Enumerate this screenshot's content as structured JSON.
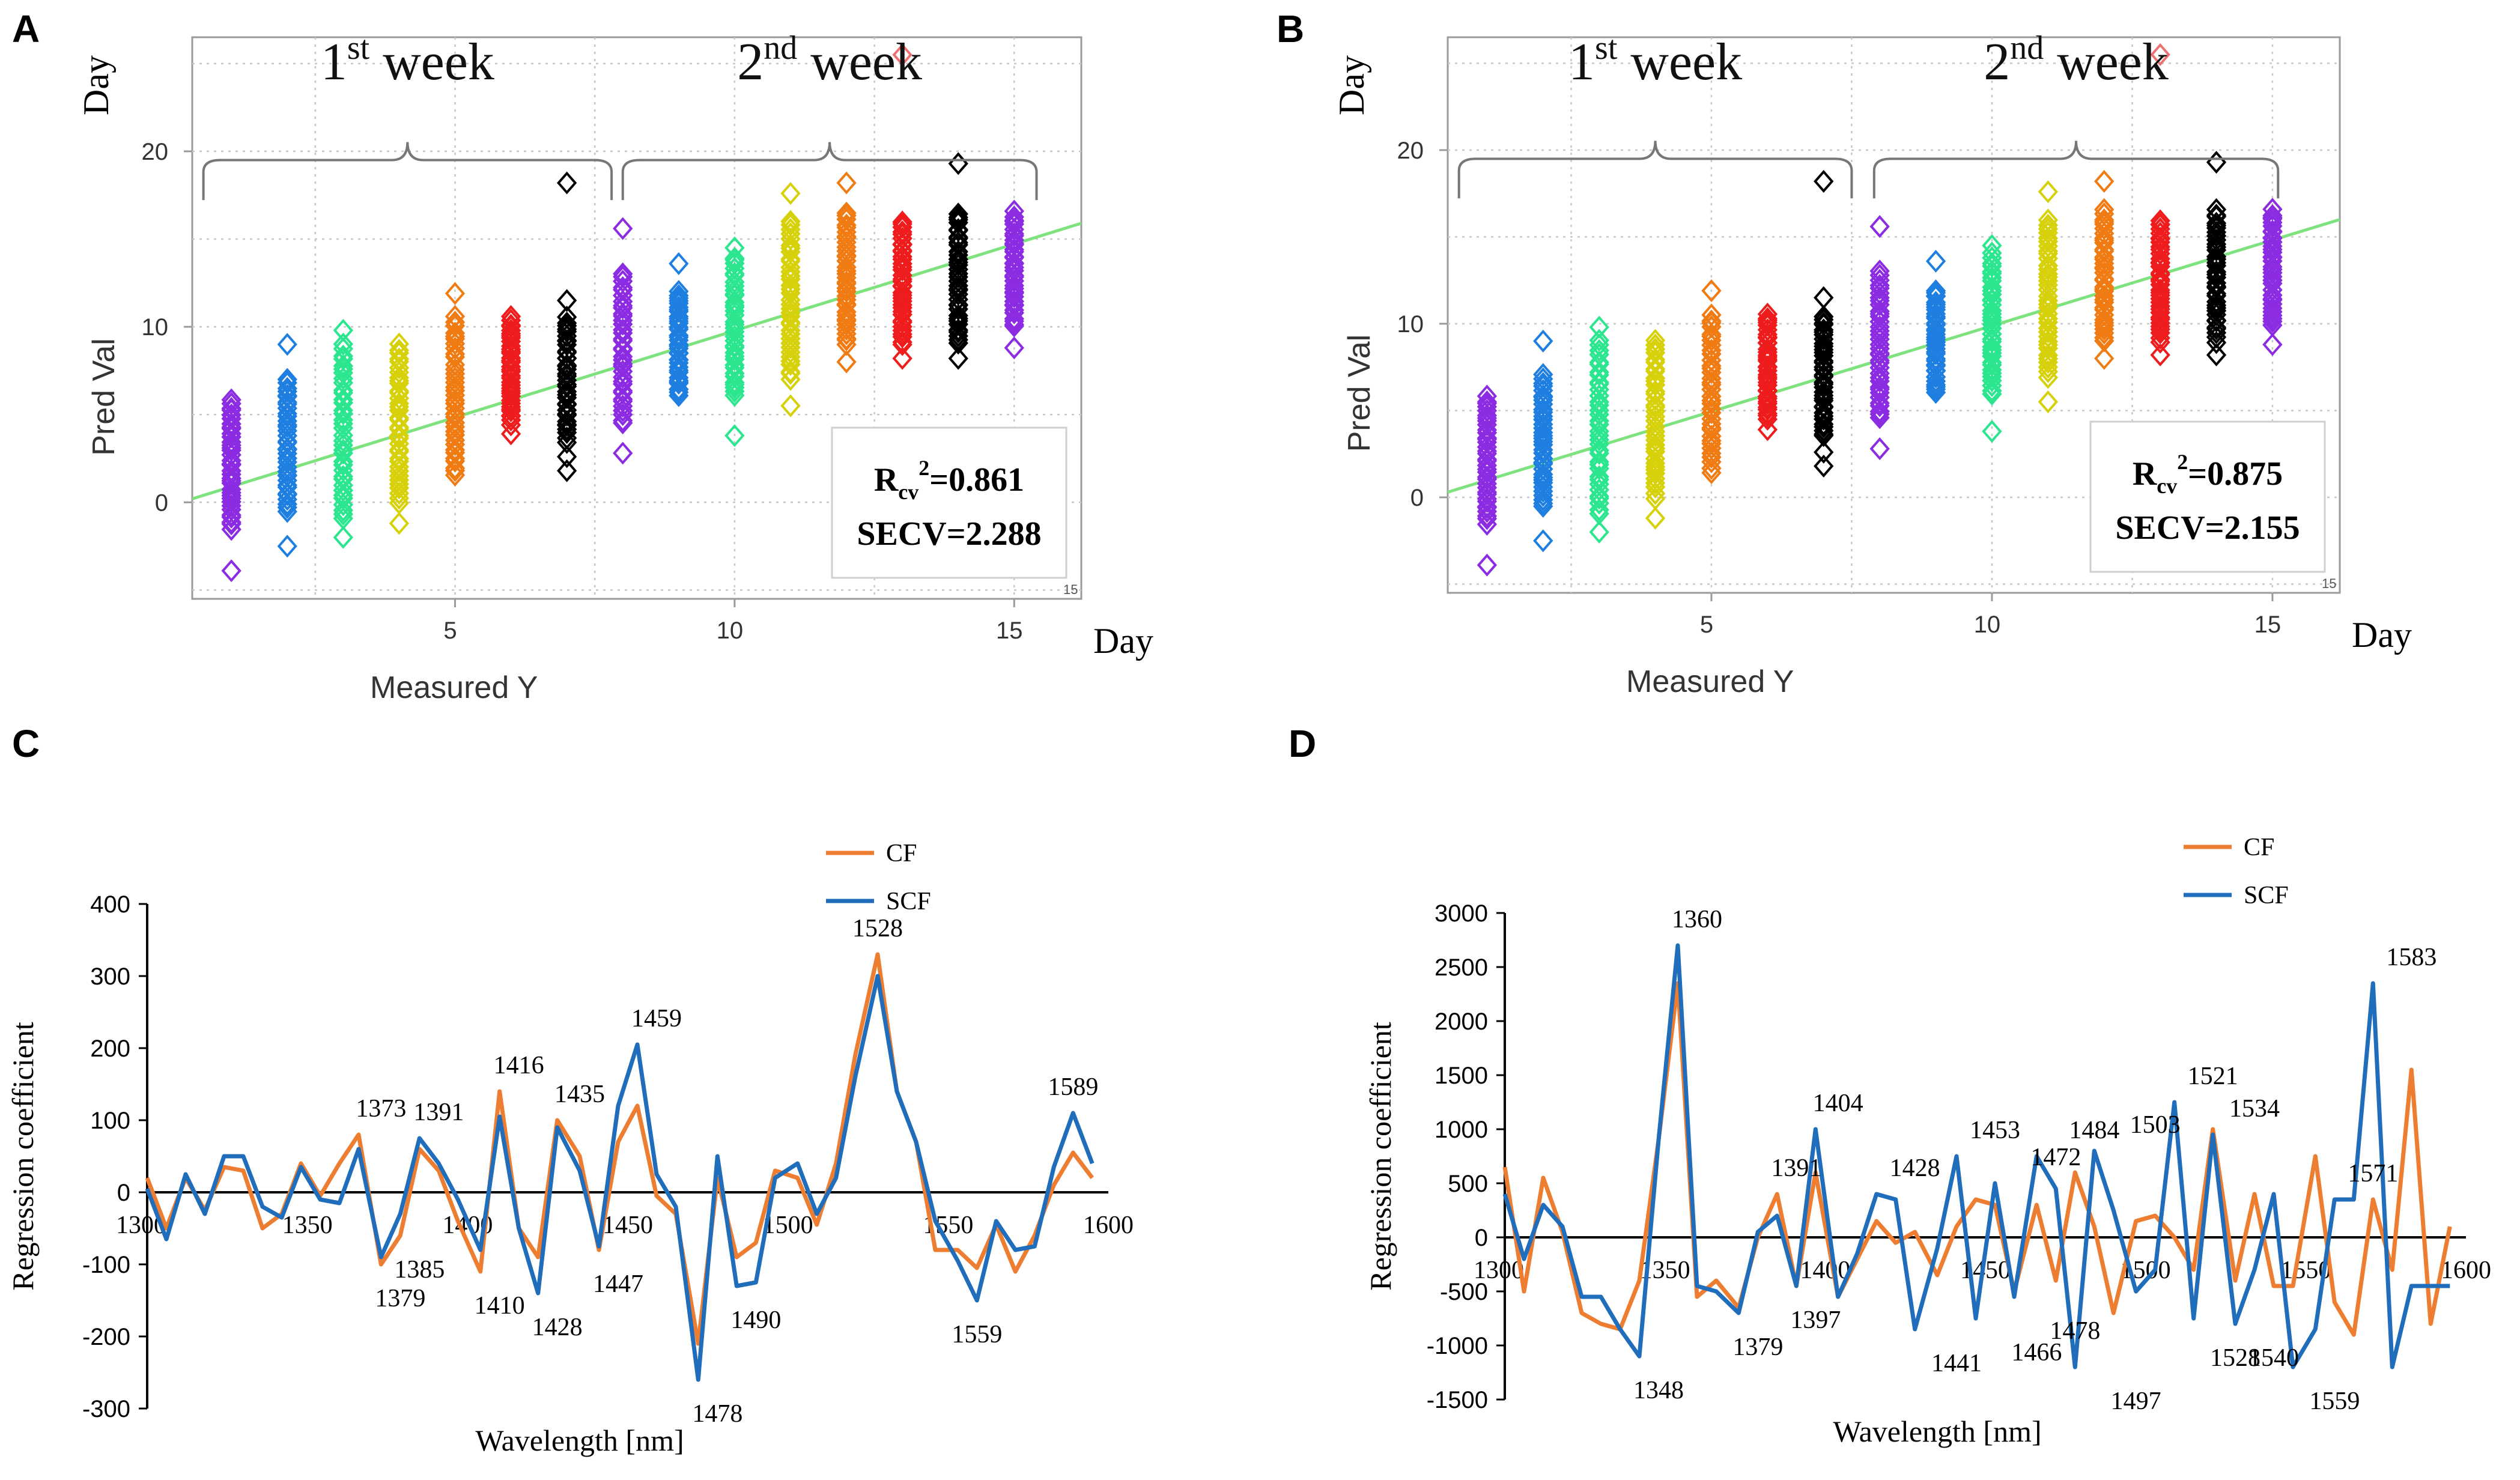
{
  "panels": [
    "A",
    "B",
    "C",
    "D"
  ],
  "chart_data": [
    {
      "panel": "A",
      "type": "scatter",
      "xlabel": "Measured Y",
      "ylabel": "Pred Val",
      "x_unit": "Day",
      "y_unit": "Day",
      "xlim": [
        0.3,
        16.2
      ],
      "ylim": [
        -5.5,
        26.5
      ],
      "x_ticks": [
        5,
        10,
        15
      ],
      "y_ticks": [
        0,
        10,
        20
      ],
      "grid": true,
      "groups": [
        {
          "label": "1st week",
          "sup": "st",
          "base": "1",
          "word": "week",
          "x_start": 0.5,
          "x_end": 7.8
        },
        {
          "label": "2nd week",
          "sup": "nd",
          "base": "2",
          "word": "week",
          "x_start": 8.0,
          "x_end": 15.4
        }
      ],
      "fit_line": {
        "x": [
          0.3,
          16.2
        ],
        "y": [
          0.2,
          15.9
        ],
        "color": "#7ee27e"
      },
      "stats": {
        "r_label_base": "R",
        "r_label_sub": "cv",
        "r_label_sup": "2",
        "r_value": "=0.861",
        "secv": "SECV=2.288"
      },
      "corner_mark": "15",
      "series": [
        {
          "day": 1,
          "color": "#8b2be2",
          "min": -1.5,
          "max": 5.8,
          "outliers": [
            -3.9
          ]
        },
        {
          "day": 2,
          "color": "#1e7fe0",
          "min": -0.5,
          "max": 7.0,
          "outliers": [
            -2.5,
            9.0
          ]
        },
        {
          "day": 3,
          "color": "#2be68f",
          "min": -1.0,
          "max": 9.0,
          "outliers": [
            -2.0,
            9.8
          ]
        },
        {
          "day": 4,
          "color": "#d6d10a",
          "min": 0.0,
          "max": 9.0,
          "outliers": [
            -1.2
          ]
        },
        {
          "day": 5,
          "color": "#f07b12",
          "min": 1.5,
          "max": 10.5,
          "outliers": [
            11.9
          ]
        },
        {
          "day": 6,
          "color": "#ee1c1c",
          "min": 4.5,
          "max": 10.5,
          "outliers": [
            3.9
          ]
        },
        {
          "day": 7,
          "color": "#000000",
          "min": 3.5,
          "max": 10.5,
          "outliers": [
            1.8,
            2.6,
            11.5,
            18.2
          ]
        },
        {
          "day": 8,
          "color": "#8b2be2",
          "min": 4.5,
          "max": 13.0,
          "outliers": [
            2.8,
            15.6
          ]
        },
        {
          "day": 9,
          "color": "#1e7fe0",
          "min": 6.0,
          "max": 12.0,
          "outliers": [
            13.6
          ]
        },
        {
          "day": 10,
          "color": "#2be68f",
          "min": 6.0,
          "max": 14.0,
          "outliers": [
            3.8,
            14.5
          ]
        },
        {
          "day": 11,
          "color": "#d6d10a",
          "min": 7.0,
          "max": 16.0,
          "outliers": [
            5.5,
            17.6
          ]
        },
        {
          "day": 12,
          "color": "#f07b12",
          "min": 9.0,
          "max": 16.5,
          "outliers": [
            8.0,
            18.2
          ]
        },
        {
          "day": 13,
          "color": "#ee1c1c",
          "min": 9.0,
          "max": 16.0,
          "outliers": [
            8.2,
            25.5
          ]
        },
        {
          "day": 14,
          "color": "#000000",
          "min": 9.0,
          "max": 16.5,
          "outliers": [
            8.2,
            19.3
          ]
        },
        {
          "day": 15,
          "color": "#8b2be2",
          "min": 10.0,
          "max": 16.5,
          "outliers": [
            8.8
          ]
        }
      ]
    },
    {
      "panel": "B",
      "type": "scatter",
      "xlabel": "Measured Y",
      "ylabel": "Pred Val",
      "x_unit": "Day",
      "y_unit": "Day",
      "xlim": [
        0.3,
        16.2
      ],
      "ylim": [
        -5.5,
        26.5
      ],
      "x_ticks": [
        5,
        10,
        15
      ],
      "y_ticks": [
        0,
        10,
        20
      ],
      "grid": true,
      "groups": [
        {
          "label": "1st week",
          "sup": "st",
          "base": "1",
          "word": "week",
          "x_start": 0.5,
          "x_end": 7.5
        },
        {
          "label": "2nd week",
          "sup": "nd",
          "base": "2",
          "word": "week",
          "x_start": 7.9,
          "x_end": 15.1
        }
      ],
      "fit_line": {
        "x": [
          0.3,
          16.2
        ],
        "y": [
          0.3,
          16.0
        ],
        "color": "#7ee27e"
      },
      "stats": {
        "r_label_base": "R",
        "r_label_sub": "cv",
        "r_label_sup": "2",
        "r_value": "=0.875",
        "secv": "SECV=2.155"
      },
      "corner_mark": "15",
      "series": [
        {
          "day": 1,
          "color": "#8b2be2",
          "min": -1.5,
          "max": 5.8,
          "outliers": [
            -3.9
          ]
        },
        {
          "day": 2,
          "color": "#1e7fe0",
          "min": -0.5,
          "max": 7.0,
          "outliers": [
            -2.5,
            9.0
          ]
        },
        {
          "day": 3,
          "color": "#2be68f",
          "min": -1.0,
          "max": 9.0,
          "outliers": [
            -2.0,
            9.8
          ]
        },
        {
          "day": 4,
          "color": "#d6d10a",
          "min": 0.0,
          "max": 9.0,
          "outliers": [
            -1.2
          ]
        },
        {
          "day": 5,
          "color": "#f07b12",
          "min": 1.5,
          "max": 10.5,
          "outliers": [
            11.9
          ]
        },
        {
          "day": 6,
          "color": "#ee1c1c",
          "min": 4.5,
          "max": 10.5,
          "outliers": [
            3.9
          ]
        },
        {
          "day": 7,
          "color": "#000000",
          "min": 3.5,
          "max": 10.5,
          "outliers": [
            1.8,
            2.6,
            11.5,
            18.2
          ]
        },
        {
          "day": 8,
          "color": "#8b2be2",
          "min": 4.5,
          "max": 13.0,
          "outliers": [
            2.8,
            15.6
          ]
        },
        {
          "day": 9,
          "color": "#1e7fe0",
          "min": 6.0,
          "max": 12.0,
          "outliers": [
            13.6
          ]
        },
        {
          "day": 10,
          "color": "#2be68f",
          "min": 6.0,
          "max": 14.0,
          "outliers": [
            3.8,
            14.5
          ]
        },
        {
          "day": 11,
          "color": "#d6d10a",
          "min": 7.0,
          "max": 16.0,
          "outliers": [
            5.5,
            17.6
          ]
        },
        {
          "day": 12,
          "color": "#f07b12",
          "min": 9.0,
          "max": 16.5,
          "outliers": [
            8.0,
            18.2
          ]
        },
        {
          "day": 13,
          "color": "#ee1c1c",
          "min": 9.0,
          "max": 16.0,
          "outliers": [
            8.2,
            25.5
          ]
        },
        {
          "day": 14,
          "color": "#000000",
          "min": 9.0,
          "max": 16.5,
          "outliers": [
            8.2,
            19.3
          ]
        },
        {
          "day": 15,
          "color": "#8b2be2",
          "min": 10.0,
          "max": 16.5,
          "outliers": [
            8.8
          ]
        }
      ]
    },
    {
      "panel": "C",
      "type": "line",
      "xlabel": "Wavelength [nm]",
      "ylabel": "Regression coefficient",
      "xlim": [
        1300,
        1600
      ],
      "ylim": [
        -300,
        400
      ],
      "x_ticks": [
        1300,
        1350,
        1400,
        1450,
        1500,
        1550,
        1600
      ],
      "y_ticks": [
        -300,
        -200,
        -100,
        0,
        100,
        200,
        300,
        400
      ],
      "x": [
        1300,
        1306,
        1312,
        1318,
        1324,
        1330,
        1336,
        1342,
        1348,
        1354,
        1360,
        1366,
        1373,
        1379,
        1385,
        1391,
        1397,
        1404,
        1410,
        1416,
        1422,
        1428,
        1435,
        1441,
        1447,
        1453,
        1459,
        1465,
        1472,
        1478,
        1484,
        1490,
        1496,
        1503,
        1509,
        1515,
        1521,
        1528,
        1534,
        1540,
        1546,
        1553,
        1559,
        1565,
        1571,
        1577,
        1583,
        1589,
        1595
      ],
      "series": [
        {
          "name": "CF",
          "color": "#ed7d31",
          "values": [
            20,
            -50,
            20,
            -25,
            35,
            30,
            -50,
            -30,
            40,
            -5,
            40,
            80,
            -100,
            -60,
            60,
            30,
            -40,
            -110,
            140,
            -50,
            -90,
            100,
            50,
            -80,
            70,
            120,
            -5,
            -30,
            -210,
            20,
            -90,
            -70,
            30,
            20,
            -45,
            40,
            190,
            330,
            140,
            70,
            -80,
            -80,
            -105,
            -45,
            -110,
            -60,
            10,
            55,
            20
          ]
        },
        {
          "name": "SCF",
          "color": "#1f6dbb",
          "values": [
            5,
            -65,
            25,
            -30,
            50,
            50,
            -20,
            -35,
            35,
            -10,
            -15,
            60,
            -90,
            -30,
            75,
            40,
            -10,
            -80,
            105,
            -50,
            -140,
            90,
            30,
            -75,
            120,
            205,
            25,
            -20,
            -260,
            50,
            -130,
            -125,
            20,
            40,
            -30,
            20,
            160,
            300,
            140,
            70,
            -40,
            -95,
            -150,
            -40,
            -80,
            -75,
            35,
            110,
            40
          ]
        }
      ],
      "annotations": [
        {
          "label": "1373",
          "x": 1373,
          "y": 80,
          "pos": "above"
        },
        {
          "label": "1391",
          "x": 1391,
          "y": 75,
          "pos": "above"
        },
        {
          "label": "1416",
          "x": 1416,
          "y": 140,
          "pos": "above"
        },
        {
          "label": "1435",
          "x": 1435,
          "y": 100,
          "pos": "above"
        },
        {
          "label": "1459",
          "x": 1459,
          "y": 205,
          "pos": "above"
        },
        {
          "label": "1528",
          "x": 1528,
          "y": 330,
          "pos": "above"
        },
        {
          "label": "1589",
          "x": 1589,
          "y": 110,
          "pos": "above"
        },
        {
          "label": "1379",
          "x": 1379,
          "y": -100,
          "pos": "below"
        },
        {
          "label": "1385",
          "x": 1385,
          "y": -60,
          "pos": "below"
        },
        {
          "label": "1410",
          "x": 1410,
          "y": -110,
          "pos": "below"
        },
        {
          "label": "1428",
          "x": 1428,
          "y": -140,
          "pos": "below"
        },
        {
          "label": "1447",
          "x": 1447,
          "y": -80,
          "pos": "below"
        },
        {
          "label": "1478",
          "x": 1478,
          "y": -260,
          "pos": "below"
        },
        {
          "label": "1490",
          "x": 1490,
          "y": -130,
          "pos": "below"
        },
        {
          "label": "1559",
          "x": 1559,
          "y": -150,
          "pos": "below"
        }
      ]
    },
    {
      "panel": "D",
      "type": "line",
      "xlabel": "Wavelength [nm]",
      "ylabel": "Regression coefficient",
      "xlim": [
        1300,
        1600
      ],
      "ylim": [
        -1500,
        3000
      ],
      "x_ticks": [
        1300,
        1350,
        1400,
        1450,
        1500,
        1550,
        1600
      ],
      "y_ticks": [
        -1500,
        -1000,
        -500,
        0,
        500,
        1000,
        1500,
        2000,
        2500,
        3000
      ],
      "x": [
        1300,
        1306,
        1312,
        1318,
        1324,
        1330,
        1336,
        1342,
        1348,
        1354,
        1360,
        1366,
        1373,
        1379,
        1385,
        1391,
        1397,
        1404,
        1410,
        1416,
        1422,
        1428,
        1435,
        1441,
        1447,
        1453,
        1459,
        1466,
        1472,
        1478,
        1484,
        1490,
        1497,
        1503,
        1509,
        1515,
        1521,
        1528,
        1534,
        1540,
        1546,
        1553,
        1559,
        1565,
        1571,
        1577,
        1583,
        1589,
        1595
      ],
      "series": [
        {
          "name": "CF",
          "color": "#ed7d31",
          "values": [
            650,
            -500,
            550,
            50,
            -700,
            -800,
            -850,
            -400,
            900,
            2350,
            -550,
            -400,
            -650,
            0,
            400,
            -450,
            600,
            -550,
            -200,
            150,
            -50,
            50,
            -350,
            100,
            350,
            300,
            -500,
            300,
            -400,
            600,
            100,
            -700,
            150,
            200,
            0,
            -300,
            1000,
            -400,
            400,
            -450,
            -450,
            750,
            -600,
            -900,
            350,
            -300,
            1550,
            -800,
            100
          ]
        },
        {
          "name": "SCF",
          "color": "#1f6dbb",
          "values": [
            400,
            -200,
            300,
            100,
            -550,
            -550,
            -850,
            -1100,
            900,
            2700,
            -450,
            -500,
            -700,
            50,
            200,
            -450,
            1000,
            -550,
            -150,
            400,
            350,
            -850,
            -100,
            750,
            -750,
            500,
            -550,
            750,
            450,
            -1200,
            800,
            250,
            -500,
            -300,
            1250,
            -750,
            950,
            -800,
            -300,
            400,
            -1200,
            -850,
            350,
            350,
            2350,
            -1200,
            -450,
            -450,
            -450
          ]
        }
      ],
      "annotations": [
        {
          "label": "1360",
          "x": 1360,
          "y": 2700,
          "pos": "above"
        },
        {
          "label": "1391",
          "x": 1391,
          "y": 400,
          "pos": "above"
        },
        {
          "label": "1404",
          "x": 1404,
          "y": 1000,
          "pos": "above"
        },
        {
          "label": "1428",
          "x": 1428,
          "y": 400,
          "pos": "above"
        },
        {
          "label": "1453",
          "x": 1453,
          "y": 750,
          "pos": "above"
        },
        {
          "label": "1472",
          "x": 1472,
          "y": 500,
          "pos": "above"
        },
        {
          "label": "1484",
          "x": 1484,
          "y": 750,
          "pos": "above"
        },
        {
          "label": "1503",
          "x": 1503,
          "y": 800,
          "pos": "above"
        },
        {
          "label": "1521",
          "x": 1521,
          "y": 1250,
          "pos": "above"
        },
        {
          "label": "1534",
          "x": 1534,
          "y": 950,
          "pos": "above"
        },
        {
          "label": "1571",
          "x": 1571,
          "y": 350,
          "pos": "above"
        },
        {
          "label": "1583",
          "x": 1583,
          "y": 2350,
          "pos": "above"
        },
        {
          "label": "1348",
          "x": 1348,
          "y": -1100,
          "pos": "below"
        },
        {
          "label": "1379",
          "x": 1379,
          "y": -700,
          "pos": "below"
        },
        {
          "label": "1397",
          "x": 1397,
          "y": -450,
          "pos": "below"
        },
        {
          "label": "1441",
          "x": 1441,
          "y": -850,
          "pos": "below"
        },
        {
          "label": "1466",
          "x": 1466,
          "y": -750,
          "pos": "below"
        },
        {
          "label": "1478",
          "x": 1478,
          "y": -550,
          "pos": "below"
        },
        {
          "label": "1497",
          "x": 1497,
          "y": -1200,
          "pos": "below"
        },
        {
          "label": "1528",
          "x": 1528,
          "y": -800,
          "pos": "below"
        },
        {
          "label": "1540",
          "x": 1540,
          "y": -800,
          "pos": "below"
        },
        {
          "label": "1559",
          "x": 1559,
          "y": -1200,
          "pos": "below"
        }
      ]
    }
  ]
}
